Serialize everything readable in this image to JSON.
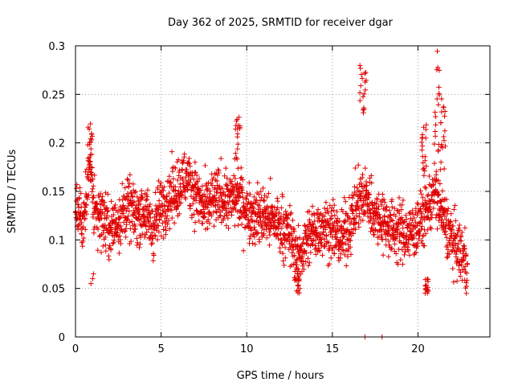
{
  "chart_data": {
    "type": "scatter",
    "title": "Day 362 of 2025, SRMTID for receiver dgar",
    "xlabel": "GPS time / hours",
    "ylabel": "SRMTID / TECUs",
    "xlim": [
      0,
      24.2
    ],
    "ylim": [
      0,
      0.3
    ],
    "xticks": [
      0,
      5,
      10,
      15,
      20
    ],
    "xtick_labels": [
      "0",
      "5",
      "10",
      "15",
      "20"
    ],
    "yticks": [
      0,
      0.05,
      0.1,
      0.15,
      0.2,
      0.25,
      0.3
    ],
    "ytick_labels": [
      "0",
      "0.05",
      "0.1",
      "0.15",
      "0.2",
      "0.25",
      "0.3"
    ],
    "grid": true,
    "marker": "+",
    "marker_color": "#e00000",
    "series": [
      {
        "name": "SRMTID",
        "trend": [
          [
            0.0,
            0.125
          ],
          [
            0.5,
            0.12
          ],
          [
            0.9,
            0.19
          ],
          [
            1.0,
            0.14
          ],
          [
            1.5,
            0.125
          ],
          [
            2.0,
            0.11
          ],
          [
            2.5,
            0.12
          ],
          [
            3.0,
            0.135
          ],
          [
            3.5,
            0.125
          ],
          [
            4.0,
            0.13
          ],
          [
            4.5,
            0.11
          ],
          [
            5.0,
            0.135
          ],
          [
            5.5,
            0.145
          ],
          [
            6.0,
            0.155
          ],
          [
            6.5,
            0.165
          ],
          [
            7.0,
            0.15
          ],
          [
            7.5,
            0.13
          ],
          [
            8.0,
            0.14
          ],
          [
            8.5,
            0.145
          ],
          [
            9.0,
            0.14
          ],
          [
            9.5,
            0.145
          ],
          [
            10.0,
            0.13
          ],
          [
            10.5,
            0.125
          ],
          [
            11.0,
            0.125
          ],
          [
            11.5,
            0.12
          ],
          [
            12.0,
            0.115
          ],
          [
            12.5,
            0.105
          ],
          [
            13.0,
            0.08
          ],
          [
            13.5,
            0.1
          ],
          [
            14.0,
            0.11
          ],
          [
            14.5,
            0.115
          ],
          [
            15.0,
            0.11
          ],
          [
            15.5,
            0.1
          ],
          [
            16.0,
            0.115
          ],
          [
            16.5,
            0.14
          ],
          [
            17.0,
            0.145
          ],
          [
            17.5,
            0.125
          ],
          [
            18.0,
            0.12
          ],
          [
            18.5,
            0.11
          ],
          [
            19.0,
            0.11
          ],
          [
            19.5,
            0.105
          ],
          [
            20.0,
            0.115
          ],
          [
            20.5,
            0.13
          ],
          [
            21.0,
            0.15
          ],
          [
            21.5,
            0.12
          ],
          [
            22.0,
            0.1
          ],
          [
            22.5,
            0.085
          ],
          [
            22.9,
            0.075
          ]
        ],
        "spread": 0.032,
        "x_end": 22.9,
        "bursts": [
          {
            "x": [
              0.7,
              1.0
            ],
            "y": [
              0.16,
              0.22
            ]
          },
          {
            "x": [
              9.3,
              9.6
            ],
            "y": [
              0.18,
              0.23
            ]
          },
          {
            "x": [
              16.6,
              17.0
            ],
            "y": [
              0.23,
              0.28
            ]
          },
          {
            "x": [
              20.2,
              20.5
            ],
            "y": [
              0.17,
              0.22
            ]
          },
          {
            "x": [
              20.9,
              21.3
            ],
            "y": [
              0.19,
              0.295
            ]
          },
          {
            "x": [
              21.3,
              21.6
            ],
            "y": [
              0.17,
              0.25
            ]
          },
          {
            "x": [
              12.8,
              13.1
            ],
            "y": [
              0.045,
              0.07
            ]
          },
          {
            "x": [
              20.4,
              20.6
            ],
            "y": [
              0.045,
              0.06
            ]
          }
        ],
        "outliers": [
          [
            16.9,
            0.0
          ],
          [
            17.9,
            0.0
          ],
          [
            0.9,
            0.055
          ],
          [
            1.0,
            0.06
          ],
          [
            1.05,
            0.065
          ],
          [
            13.0,
            0.048
          ]
        ]
      }
    ]
  }
}
